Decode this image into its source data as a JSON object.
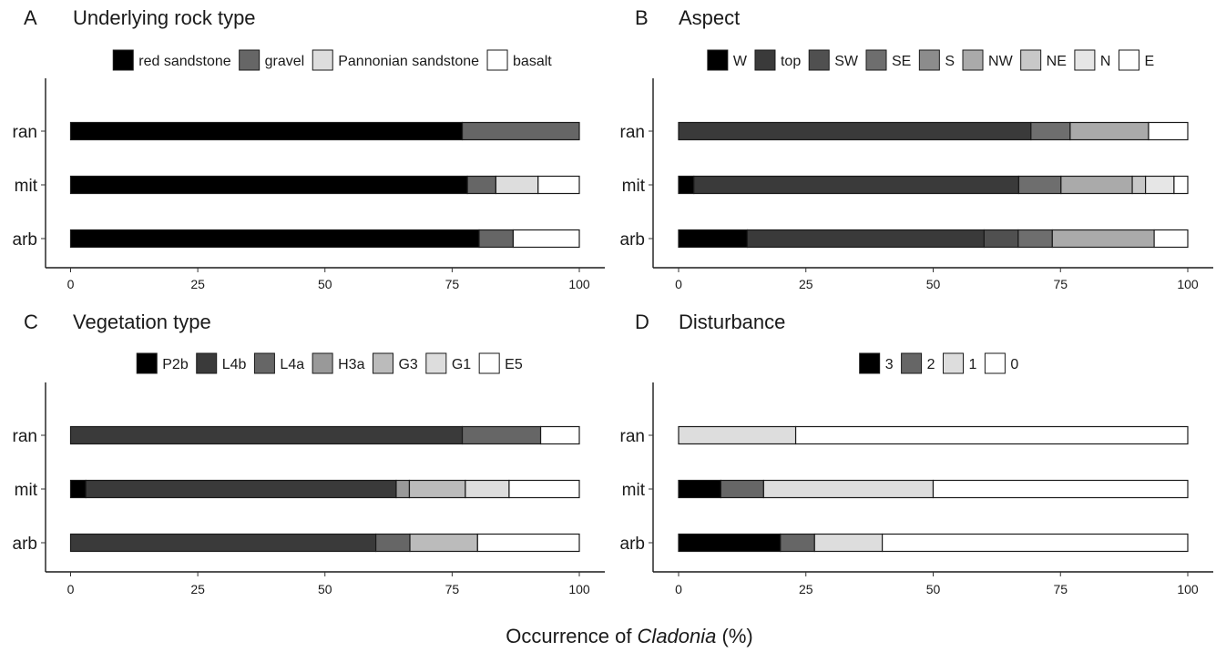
{
  "figure": {
    "xlabel_prefix": "Occurrence of ",
    "xlabel_italic": "Cladonia",
    "xlabel_suffix": " (%)"
  },
  "chart_data": [
    {
      "type": "bar",
      "orientation": "horizontal",
      "stacked": true,
      "panel_letter": "A",
      "title": "Underlying rock type",
      "categories": [
        "ran",
        "mit",
        "arb"
      ],
      "xlim": [
        0,
        100
      ],
      "xticks": [
        0,
        25,
        50,
        75,
        100
      ],
      "legend_position": "top",
      "series": [
        {
          "name": "red sandstone",
          "color": "#000000",
          "values": [
            77,
            78,
            80.3
          ]
        },
        {
          "name": "gravel",
          "color": "#666666",
          "values": [
            23,
            5.6,
            6.7
          ]
        },
        {
          "name": "Pannonian sandstone",
          "color": "#dddddd",
          "values": [
            0,
            8.3,
            0
          ]
        },
        {
          "name": "basalt",
          "color": "#ffffff",
          "values": [
            0,
            8.1,
            13
          ]
        }
      ]
    },
    {
      "type": "bar",
      "orientation": "horizontal",
      "stacked": true,
      "panel_letter": "B",
      "title": "Aspect",
      "categories": [
        "ran",
        "mit",
        "arb"
      ],
      "xlim": [
        0,
        100
      ],
      "xticks": [
        0,
        25,
        50,
        75,
        100
      ],
      "legend_position": "top",
      "series": [
        {
          "name": "W",
          "color": "#000000",
          "values": [
            0,
            3,
            13.5
          ]
        },
        {
          "name": "top",
          "color": "#3a3a3a",
          "values": [
            69.2,
            63.8,
            46.5
          ]
        },
        {
          "name": "SW",
          "color": "#505050",
          "values": [
            0,
            0,
            6.7
          ]
        },
        {
          "name": "SE",
          "color": "#6e6e6e",
          "values": [
            7.7,
            8.3,
            6.7
          ]
        },
        {
          "name": "S",
          "color": "#8c8c8c",
          "values": [
            0,
            0,
            0
          ]
        },
        {
          "name": "NW",
          "color": "#aaaaaa",
          "values": [
            15.4,
            14,
            20
          ]
        },
        {
          "name": "NE",
          "color": "#c8c8c8",
          "values": [
            0,
            2.6,
            0
          ]
        },
        {
          "name": "N",
          "color": "#e6e6e6",
          "values": [
            0,
            5.6,
            0
          ]
        },
        {
          "name": "E",
          "color": "#ffffff",
          "values": [
            7.7,
            2.7,
            6.6
          ]
        }
      ]
    },
    {
      "type": "bar",
      "orientation": "horizontal",
      "stacked": true,
      "panel_letter": "C",
      "title": "Vegetation type",
      "categories": [
        "ran",
        "mit",
        "arb"
      ],
      "xlim": [
        0,
        100
      ],
      "xticks": [
        0,
        25,
        50,
        75,
        100
      ],
      "legend_position": "top",
      "series": [
        {
          "name": "P2b",
          "color": "#000000",
          "values": [
            0,
            3,
            0
          ]
        },
        {
          "name": "L4b",
          "color": "#3a3a3a",
          "values": [
            77,
            61,
            60
          ]
        },
        {
          "name": "L4a",
          "color": "#666666",
          "values": [
            15.4,
            0,
            6.7
          ]
        },
        {
          "name": "H3a",
          "color": "#999999",
          "values": [
            0,
            2.6,
            0
          ]
        },
        {
          "name": "G3",
          "color": "#bbbbbb",
          "values": [
            0,
            11,
            13.3
          ]
        },
        {
          "name": "G1",
          "color": "#dddddd",
          "values": [
            0,
            8.6,
            0
          ]
        },
        {
          "name": "E5",
          "color": "#ffffff",
          "values": [
            7.6,
            13.8,
            20
          ]
        }
      ]
    },
    {
      "type": "bar",
      "orientation": "horizontal",
      "stacked": true,
      "panel_letter": "D",
      "title": "Disturbance",
      "categories": [
        "ran",
        "mit",
        "arb"
      ],
      "xlim": [
        0,
        100
      ],
      "xticks": [
        0,
        25,
        50,
        75,
        100
      ],
      "legend_position": "top",
      "series": [
        {
          "name": "3",
          "color": "#000000",
          "values": [
            0,
            8.3,
            20
          ]
        },
        {
          "name": "2",
          "color": "#666666",
          "values": [
            0,
            8.4,
            6.7
          ]
        },
        {
          "name": "1",
          "color": "#dddddd",
          "values": [
            23,
            33.3,
            13.3
          ]
        },
        {
          "name": "0",
          "color": "#ffffff",
          "values": [
            77,
            50,
            60
          ]
        }
      ]
    }
  ]
}
